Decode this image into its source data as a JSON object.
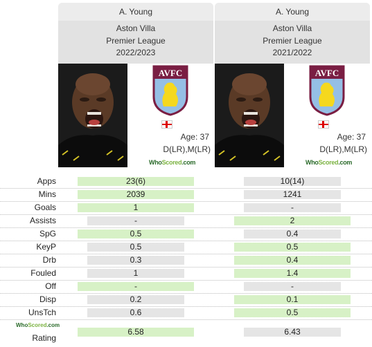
{
  "players": [
    {
      "name": "A. Young",
      "team": "Aston Villa",
      "league": "Premier League",
      "season": "2022/2023",
      "badge_text": "AVFC",
      "age_label": "Age: 37",
      "positions": "D(LR),M(LR)"
    },
    {
      "name": "A. Young",
      "team": "Aston Villa",
      "league": "Premier League",
      "season": "2021/2022",
      "badge_text": "AVFC",
      "age_label": "Age: 37",
      "positions": "D(LR),M(LR)"
    }
  ],
  "whoscored": {
    "who": "Who",
    "scored": "Scored",
    "com": ".com"
  },
  "stats": [
    {
      "label": "Apps",
      "v1": "23(6)",
      "v2": "10(14)",
      "better": 1
    },
    {
      "label": "Mins",
      "v1": "2039",
      "v2": "1241",
      "better": 1
    },
    {
      "label": "Goals",
      "v1": "1",
      "v2": "-",
      "better": 1
    },
    {
      "label": "Assists",
      "v1": "-",
      "v2": "2",
      "better": 2
    },
    {
      "label": "SpG",
      "v1": "0.5",
      "v2": "0.4",
      "better": 1
    },
    {
      "label": "KeyP",
      "v1": "0.5",
      "v2": "0.5",
      "better": 2
    },
    {
      "label": "Drb",
      "v1": "0.3",
      "v2": "0.4",
      "better": 2
    },
    {
      "label": "Fouled",
      "v1": "1",
      "v2": "1.4",
      "better": 2
    },
    {
      "label": "Off",
      "v1": "-",
      "v2": "-",
      "better": 1
    },
    {
      "label": "Disp",
      "v1": "0.2",
      "v2": "0.1",
      "better": 2
    },
    {
      "label": "UnsTch",
      "v1": "0.6",
      "v2": "0.5",
      "better": 2
    }
  ],
  "rating": {
    "label": "Rating",
    "v1": "6.58",
    "v2": "6.43",
    "better": 1
  },
  "colors": {
    "better": "#d7f1c6",
    "worse": "#e5e5e5",
    "header": "#e2e2e2",
    "villa_claret": "#7a1e43",
    "villa_blue": "#95bfe5"
  }
}
